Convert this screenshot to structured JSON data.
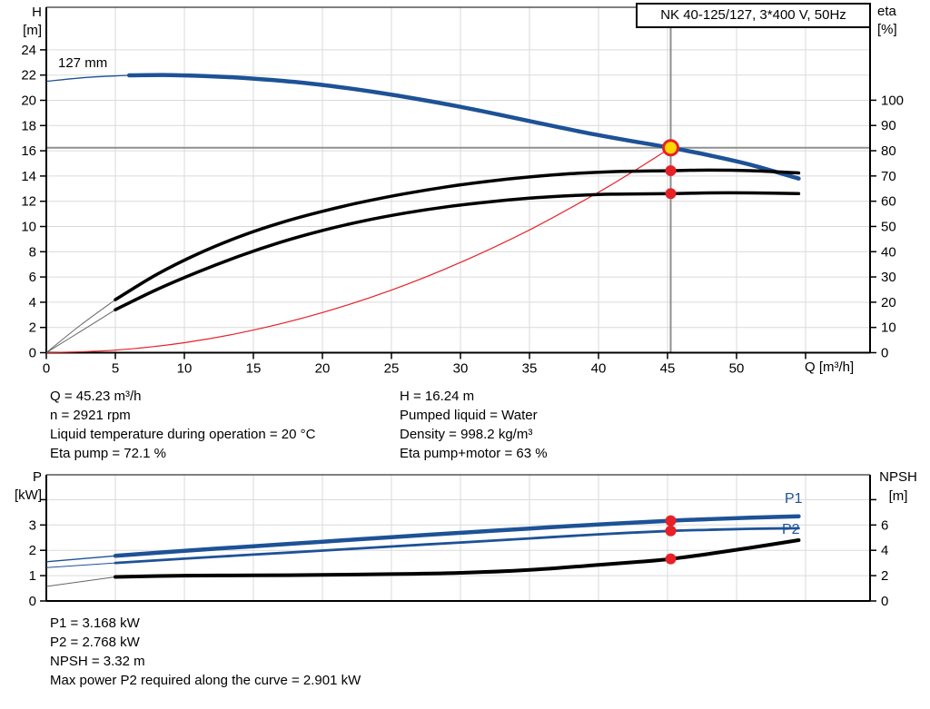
{
  "title_box": {
    "label": "NK 40-125/127, 3*400 V, 50Hz"
  },
  "colors": {
    "blue": "#1d5296",
    "red": "#e62128",
    "yellow": "#ffd700",
    "black": "#000000",
    "gray_lead": "#666666",
    "op_line": "#8f8f8f",
    "grid": "#dadada"
  },
  "top_chart": {
    "y_left_label_1": "H",
    "y_left_label_2": "[m]",
    "y_right_label_1": "eta",
    "y_right_label_2": "[%]",
    "x_label": "Q [m³/h]",
    "impeller_label": "127 mm",
    "left_ticks": [
      0,
      2,
      4,
      6,
      8,
      10,
      12,
      14,
      16,
      18,
      20,
      22,
      24
    ],
    "right_ticks": [
      0,
      10,
      20,
      30,
      40,
      50,
      60,
      70,
      80,
      90,
      100
    ],
    "x_ticks": [
      0,
      5,
      10,
      15,
      20,
      25,
      30,
      35,
      40,
      45,
      50
    ],
    "x_ticks_unlabeled": [
      55
    ]
  },
  "bottom_chart": {
    "y_left_label_1": "P",
    "y_left_label_2": "[kW]",
    "y_right_label_1": "NPSH",
    "y_right_label_2": "[m]",
    "left_ticks": [
      0,
      1,
      2,
      3
    ],
    "left_ticks_unlabeled": [
      4
    ],
    "right_ticks": [
      0,
      2,
      4,
      6
    ],
    "right_ticks_unlabeled": [
      8
    ],
    "p1_label": "P1",
    "p2_label": "P2"
  },
  "info_top_left": {
    "line1": "Q = 45.23 m³/h",
    "line2": "n = 2921 rpm",
    "line3": "Liquid temperature during operation = 20 °C",
    "line4": "Eta pump = 72.1 %"
  },
  "info_top_right": {
    "line1": "H = 16.24 m",
    "line2": "Pumped liquid = Water",
    "line3": "Density = 998.2 kg/m³",
    "line4": "Eta pump+motor = 63 %"
  },
  "info_bottom": {
    "line1": "P1 = 3.168 kW",
    "line2": "P2 = 2.768 kW",
    "line3": "NPSH = 3.32 m",
    "line4": "Max power P2 required along the curve = 2.901 kW"
  },
  "chart_data": [
    {
      "type": "line",
      "title": "NK 40-125/127, 3*400 V, 50Hz — Q/H and efficiency curves",
      "xlabel": "Q [m³/h]",
      "ylabel_left": "H [m]",
      "ylabel_right": "eta [%]",
      "xlim": [
        0,
        59.7
      ],
      "ylim_left": [
        0,
        27.4
      ],
      "ylim_right": [
        0,
        137
      ],
      "grid": true,
      "series": [
        {
          "name": "head_127mm",
          "axis": "left",
          "color": "blue",
          "width": 4.5,
          "thin_width": 1.3,
          "thin_color": "blue",
          "thin_until": 6,
          "points": [
            [
              0,
              21.5
            ],
            [
              3,
              21.82
            ],
            [
              6,
              21.98
            ],
            [
              9,
              22.0
            ],
            [
              12,
              21.9
            ],
            [
              15,
              21.72
            ],
            [
              18,
              21.45
            ],
            [
              21,
              21.08
            ],
            [
              24,
              20.62
            ],
            [
              27,
              20.08
            ],
            [
              30,
              19.48
            ],
            [
              33,
              18.82
            ],
            [
              36,
              18.12
            ],
            [
              39,
              17.45
            ],
            [
              42,
              16.85
            ],
            [
              45.23,
              16.24
            ],
            [
              48,
              15.65
            ],
            [
              51,
              14.9
            ],
            [
              54.5,
              13.8
            ]
          ]
        },
        {
          "name": "eta_pump",
          "axis": "right",
          "color": "black",
          "width": 3.5,
          "thin_width": 1,
          "thin_color": "gray_lead",
          "thin_until": 5,
          "points": [
            [
              0,
              0
            ],
            [
              2.5,
              11
            ],
            [
              5,
              21
            ],
            [
              8,
              31
            ],
            [
              11,
              39.2
            ],
            [
              14,
              46
            ],
            [
              17,
              51.5
            ],
            [
              20,
              56
            ],
            [
              23,
              59.8
            ],
            [
              26,
              63
            ],
            [
              29,
              65.7
            ],
            [
              32,
              67.9
            ],
            [
              35,
              69.6
            ],
            [
              38,
              70.9
            ],
            [
              41,
              71.7
            ],
            [
              45.23,
              72.1
            ],
            [
              48,
              72.3
            ],
            [
              51,
              72.1
            ],
            [
              54.5,
              71.2
            ]
          ]
        },
        {
          "name": "eta_pump_motor",
          "axis": "right",
          "color": "black",
          "width": 3.5,
          "thin_width": 1,
          "thin_color": "gray_lead",
          "thin_until": 5,
          "points": [
            [
              0,
              0
            ],
            [
              2.5,
              8.5
            ],
            [
              5,
              17
            ],
            [
              8,
              25
            ],
            [
              11,
              32
            ],
            [
              14,
              38.3
            ],
            [
              17,
              43.8
            ],
            [
              20,
              48.4
            ],
            [
              23,
              52.2
            ],
            [
              26,
              55.3
            ],
            [
              29,
              57.8
            ],
            [
              32,
              59.7
            ],
            [
              35,
              61.2
            ],
            [
              38,
              62.2
            ],
            [
              41,
              62.8
            ],
            [
              45.23,
              63
            ],
            [
              48,
              63.3
            ],
            [
              51,
              63.3
            ],
            [
              54.5,
              63
            ]
          ]
        },
        {
          "name": "system_curve",
          "axis": "left",
          "color": "red",
          "width": 1.2,
          "points": [
            [
              0,
              0
            ],
            [
              5,
              0.2
            ],
            [
              10,
              0.79
            ],
            [
              15,
              1.79
            ],
            [
              20,
              3.18
            ],
            [
              25,
              4.96
            ],
            [
              30,
              7.15
            ],
            [
              35,
              9.73
            ],
            [
              40,
              12.71
            ],
            [
              42.5,
              14.35
            ],
            [
              45.23,
              16.24
            ]
          ]
        }
      ],
      "duty_point": {
        "q": 45.23,
        "h": 16.24,
        "eta_pump": 72.1,
        "eta_pump_motor": 63
      }
    },
    {
      "type": "line",
      "title": "Power and NPSH curves",
      "xlabel": "Q [m³/h]",
      "ylabel_left": "P [kW]",
      "ylabel_right": "NPSH [m]",
      "xlim": [
        0,
        59.7
      ],
      "ylim_left": [
        0,
        5
      ],
      "ylim_right": [
        0,
        10
      ],
      "grid": true,
      "series": [
        {
          "name": "p1",
          "axis": "left",
          "color": "blue",
          "width": 4.5,
          "thin_width": 1.3,
          "thin_color": "blue",
          "thin_until": 5,
          "points": [
            [
              0,
              1.55
            ],
            [
              5,
              1.78
            ],
            [
              10,
              1.98
            ],
            [
              15,
              2.16
            ],
            [
              20,
              2.34
            ],
            [
              25,
              2.52
            ],
            [
              30,
              2.69
            ],
            [
              35,
              2.86
            ],
            [
              40,
              3.02
            ],
            [
              45.23,
              3.168
            ],
            [
              48,
              3.23
            ],
            [
              51,
              3.29
            ],
            [
              54.5,
              3.34
            ]
          ]
        },
        {
          "name": "p2",
          "axis": "left",
          "color": "blue",
          "width": 2.8,
          "thin_width": 1,
          "thin_color": "blue",
          "thin_until": 5,
          "points": [
            [
              0,
              1.32
            ],
            [
              5,
              1.5
            ],
            [
              10,
              1.67
            ],
            [
              15,
              1.83
            ],
            [
              20,
              1.99
            ],
            [
              25,
              2.15
            ],
            [
              30,
              2.31
            ],
            [
              35,
              2.47
            ],
            [
              40,
              2.63
            ],
            [
              45.23,
              2.768
            ],
            [
              48,
              2.81
            ],
            [
              51,
              2.85
            ],
            [
              54.5,
              2.87
            ]
          ]
        },
        {
          "name": "npsh",
          "axis": "right",
          "color": "black",
          "width": 4,
          "thin_width": 1,
          "thin_color": "gray_lead",
          "thin_until": 5,
          "points": [
            [
              0,
              1.15
            ],
            [
              5,
              1.9
            ],
            [
              10,
              2.0
            ],
            [
              15,
              2.02
            ],
            [
              20,
              2.06
            ],
            [
              25,
              2.12
            ],
            [
              30,
              2.22
            ],
            [
              35,
              2.45
            ],
            [
              40,
              2.85
            ],
            [
              43,
              3.1
            ],
            [
              45.23,
              3.32
            ],
            [
              48,
              3.72
            ],
            [
              51,
              4.2
            ],
            [
              54.5,
              4.8
            ]
          ]
        }
      ],
      "duty_point": {
        "q": 45.23,
        "p1": 3.168,
        "p2": 2.768,
        "npsh": 3.32
      }
    }
  ]
}
